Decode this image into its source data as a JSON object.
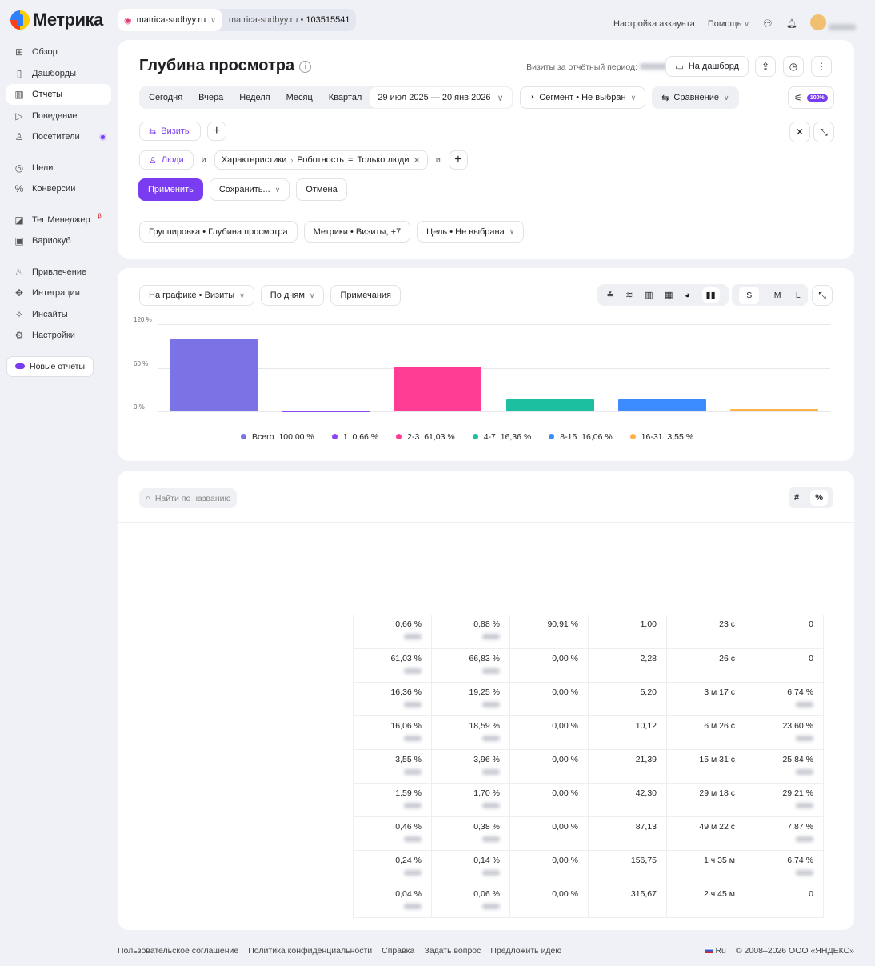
{
  "app": {
    "logo": "Метрика"
  },
  "counter": {
    "site": "matrica-sudbyy.ru",
    "site2": "matrica-sudbyy.ru",
    "id": "103515541"
  },
  "topnav": {
    "account": "Настройка аккаунта",
    "help": "Помощь"
  },
  "sidebar": {
    "items": [
      {
        "label": "Обзор",
        "icon": "grid-icon"
      },
      {
        "label": "Дашборды",
        "icon": "dashboard-icon"
      },
      {
        "label": "Отчеты",
        "icon": "bar-chart-icon",
        "active": true
      },
      {
        "label": "Поведение",
        "icon": "play-icon"
      },
      {
        "label": "Посетители",
        "icon": "user-icon"
      },
      {
        "label": "Цели",
        "icon": "target-icon"
      },
      {
        "label": "Конверсии",
        "icon": "percent-icon"
      },
      {
        "label": "Тег Менеджер",
        "icon": "tag-icon",
        "badge": "β"
      },
      {
        "label": "Вариокуб",
        "icon": "cube-icon"
      },
      {
        "label": "Привлечение",
        "icon": "flame-icon"
      },
      {
        "label": "Интеграции",
        "icon": "puzzle-icon"
      },
      {
        "label": "Инсайты",
        "icon": "sparkle-icon"
      },
      {
        "label": "Настройки",
        "icon": "gear-icon"
      }
    ],
    "new_reports": "Новые отчеты"
  },
  "report": {
    "title": "Глубина просмотра",
    "visits_label": "Визиты за отчётный период:",
    "to_dashboard": "На дашборд",
    "periods": [
      "Сегодня",
      "Вчера",
      "Неделя",
      "Месяц",
      "Квартал"
    ],
    "date_range": "29 июл 2025 — 20 янв 2026",
    "segment": "Сегмент • Не выбран",
    "compare": "Сравнение",
    "sampling": "100%",
    "visits_chip": "Визиты",
    "people": "Люди",
    "and": "и",
    "filter": {
      "a": "Характеристики",
      "b": "Роботность",
      "op": "=",
      "c": "Только люди"
    },
    "apply": "Применить",
    "save": "Сохранить...",
    "cancel": "Отмена",
    "grouping": "Группировка • Глубина просмотра",
    "metrics": "Метрики • Визиты, +7",
    "goal": "Цель • Не выбрана"
  },
  "chart_controls": {
    "on_chart": "На графике • Визиты",
    "by": "По дням",
    "notes": "Примечания",
    "sizes": [
      "S",
      "M",
      "L"
    ]
  },
  "chart_data": {
    "type": "bar",
    "ylim": [
      0,
      120
    ],
    "yticks": [
      "0 %",
      "60 %",
      "120 %"
    ],
    "categories": [
      "Всего",
      "1",
      "2-3",
      "4-7",
      "8-15",
      "16-31"
    ],
    "values": [
      100.0,
      0.66,
      61.03,
      16.36,
      16.06,
      3.55
    ],
    "labels": [
      "100,00 %",
      "0,66 %",
      "61,03 %",
      "16,36 %",
      "16,06 %",
      "3,55 %"
    ],
    "colors": [
      "#7b72e6",
      "#8a46f0",
      "#ff3d94",
      "#1cc0a0",
      "#3c8cff",
      "#ffb347"
    ],
    "grid": true,
    "legend": "bottom"
  },
  "table": {
    "search_placeholder": "Найти по названию",
    "toggle": [
      "#",
      "%"
    ],
    "rows": [
      [
        "0,66 %",
        "0,88 %",
        "90,91 %",
        "1,00",
        "23 с",
        "0"
      ],
      [
        "61,03 %",
        "66,83 %",
        "0,00 %",
        "2,28",
        "26 с",
        "0"
      ],
      [
        "16,36 %",
        "19,25 %",
        "0,00 %",
        "5,20",
        "3 м 17 с",
        "6,74 %"
      ],
      [
        "16,06 %",
        "18,59 %",
        "0,00 %",
        "10,12",
        "6 м 26 с",
        "23,60 %"
      ],
      [
        "3,55 %",
        "3,96 %",
        "0,00 %",
        "21,39",
        "15 м 31 с",
        "25,84 %"
      ],
      [
        "1,59 %",
        "1,70 %",
        "0,00 %",
        "42,30",
        "29 м 18 с",
        "29,21 %"
      ],
      [
        "0,46 %",
        "0,38 %",
        "0,00 %",
        "87,13",
        "49 м 22 с",
        "7,87 %"
      ],
      [
        "0,24 %",
        "0,14 %",
        "0,00 %",
        "156,75",
        "1 ч 35 м",
        "6,74 %"
      ],
      [
        "0,04 %",
        "0,06 %",
        "0,00 %",
        "315,67",
        "2 ч 45 м",
        "0"
      ]
    ]
  },
  "footer": {
    "links": [
      "Пользовательское соглашение",
      "Политика конфиденциальности",
      "Справка",
      "Задать вопрос",
      "Предложить идею"
    ],
    "lang": "Ru",
    "copyright": "© 2008–2026 ООО «ЯНДЕКС»"
  }
}
